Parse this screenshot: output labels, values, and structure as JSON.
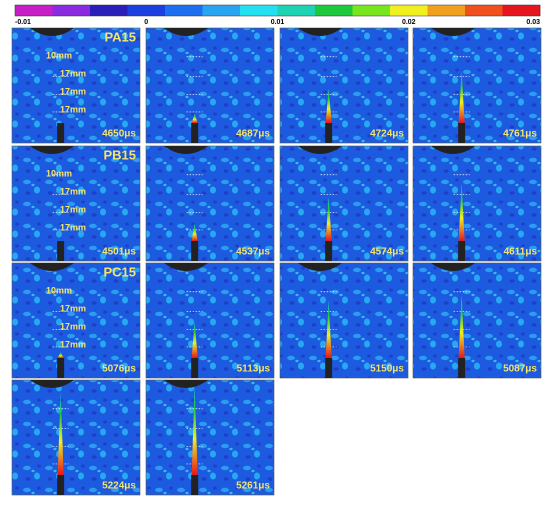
{
  "colorbar": {
    "ticks": [
      "-0.01",
      "0",
      "0.01",
      "0.02",
      "0.03"
    ],
    "colors": [
      "#c81ec8",
      "#8a2be2",
      "#2a1fb8",
      "#1d3fe0",
      "#1e6ff0",
      "#28a4f0",
      "#22e0f0",
      "#1ed2b4",
      "#1ec83c",
      "#78e61e",
      "#f0f01e",
      "#f0a01e",
      "#f0501e",
      "#e6141e"
    ]
  },
  "rows": [
    {
      "specimen": "PA15",
      "rulers": [
        "10mm",
        "17mm",
        "17mm",
        "17mm"
      ],
      "times": [
        "4650μs",
        "4687μs",
        "4724μs",
        "4761μs"
      ]
    },
    {
      "specimen": "PB15",
      "rulers": [
        "10mm",
        "17mm",
        "17mm",
        "17mm"
      ],
      "times": [
        "4501μs",
        "4537μs",
        "4574μs",
        "4611μs"
      ]
    },
    {
      "specimen": "PC15",
      "rulers": [
        "10mm",
        "17mm",
        "17mm",
        "17mm"
      ],
      "times": [
        "5076μs",
        "5113μs",
        "5150μs",
        "5087μs"
      ]
    },
    {
      "times": [
        "5224μs",
        "5261μs"
      ]
    }
  ]
}
